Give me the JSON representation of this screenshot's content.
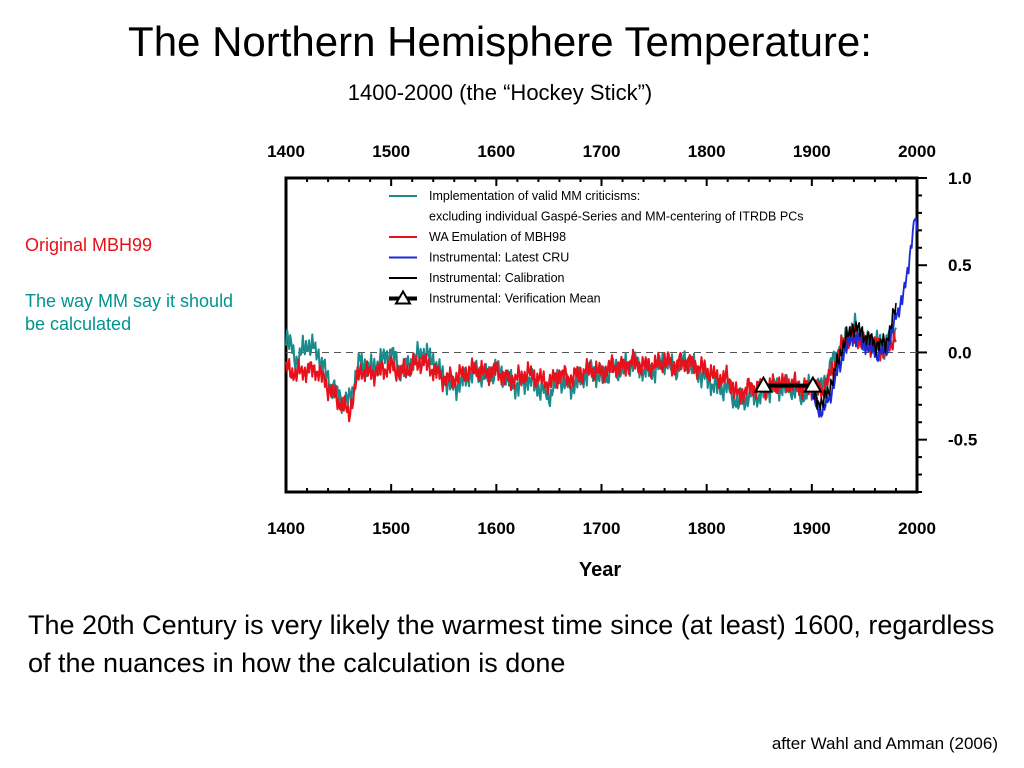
{
  "slide": {
    "title": "The Northern Hemisphere Temperature:",
    "subtitle": "1400-2000 (the “Hockey Stick”)",
    "side_note_red": "Original MBH99",
    "side_note_teal": "The  way MM say it should be calculated",
    "conclusion": "The 20th Century is very likely the warmest time since (at least) 1600, regardless of the nuances in how the calculation is done",
    "credit": "after Wahl and Amman (2006)"
  },
  "chart_data": {
    "type": "line",
    "xlabel": "Year",
    "ylabel": "",
    "xlim": [
      1400,
      2000
    ],
    "ylim": [
      -0.8,
      1.0
    ],
    "x_ticks": [
      1400,
      1500,
      1600,
      1700,
      1800,
      1900,
      2000
    ],
    "y_ticks": [
      1.0,
      0.5,
      0.0,
      -0.5
    ],
    "y_tick_labels": [
      "1.0",
      "0.5",
      "0.0",
      "-0.5"
    ],
    "reference_line": 0.0,
    "legend": {
      "placement": "top-left-inside",
      "entries": [
        {
          "label": "Implementation of valid MM criticisms:",
          "color": "#1a8a8a",
          "marker": "line"
        },
        {
          "label": "excluding individual Gaspé-Series and MM-centering of ITRDB PCs",
          "color": "",
          "marker": "none"
        },
        {
          "label": "WA Emulation of MBH98",
          "color": "#e8101a",
          "marker": "line"
        },
        {
          "label": "Instrumental: Latest CRU",
          "color": "#1a2ad8",
          "marker": "line"
        },
        {
          "label": "Instrumental: Calibration",
          "color": "#000000",
          "marker": "line"
        },
        {
          "label": "Instrumental: Verification Mean",
          "color": "#000000",
          "marker": "triangle-line"
        }
      ]
    },
    "series": [
      {
        "name": "Implementation of valid MM criticisms",
        "color": "#1a8a8a",
        "x": [
          1400,
          1410,
          1420,
          1430,
          1440,
          1450,
          1460,
          1470,
          1480,
          1490,
          1500,
          1510,
          1520,
          1530,
          1540,
          1550,
          1560,
          1570,
          1580,
          1590,
          1600,
          1610,
          1620,
          1630,
          1640,
          1650,
          1660,
          1670,
          1680,
          1690,
          1700,
          1710,
          1720,
          1730,
          1740,
          1750,
          1760,
          1770,
          1780,
          1790,
          1800,
          1810,
          1820,
          1830,
          1840,
          1850,
          1860,
          1870,
          1880,
          1890,
          1900,
          1910,
          1920,
          1930,
          1940,
          1950,
          1960,
          1970,
          1980
        ],
        "y": [
          0.1,
          -0.05,
          0.05,
          0.0,
          -0.15,
          -0.25,
          -0.28,
          -0.05,
          -0.1,
          -0.05,
          0.0,
          -0.1,
          -0.05,
          0.0,
          -0.05,
          -0.15,
          -0.2,
          -0.15,
          -0.1,
          -0.15,
          -0.1,
          -0.15,
          -0.2,
          -0.15,
          -0.2,
          -0.25,
          -0.15,
          -0.2,
          -0.15,
          -0.1,
          -0.15,
          -0.1,
          -0.1,
          -0.05,
          -0.1,
          -0.1,
          -0.05,
          -0.1,
          -0.05,
          -0.1,
          -0.15,
          -0.2,
          -0.2,
          -0.3,
          -0.25,
          -0.25,
          -0.2,
          -0.2,
          -0.2,
          -0.25,
          -0.2,
          -0.2,
          -0.05,
          0.05,
          0.15,
          0.05,
          0.05,
          0.05,
          0.15
        ]
      },
      {
        "name": "WA Emulation of MBH98",
        "color": "#e8101a",
        "x": [
          1400,
          1410,
          1420,
          1430,
          1440,
          1450,
          1460,
          1470,
          1480,
          1490,
          1500,
          1510,
          1520,
          1530,
          1540,
          1550,
          1560,
          1570,
          1580,
          1590,
          1600,
          1610,
          1620,
          1630,
          1640,
          1650,
          1660,
          1670,
          1680,
          1690,
          1700,
          1710,
          1720,
          1730,
          1740,
          1750,
          1760,
          1770,
          1780,
          1790,
          1800,
          1810,
          1820,
          1830,
          1840,
          1850,
          1860,
          1870,
          1880,
          1890,
          1900,
          1910,
          1920,
          1930,
          1940,
          1950,
          1960,
          1970,
          1980
        ],
        "y": [
          -0.1,
          -0.12,
          -0.1,
          -0.1,
          -0.2,
          -0.28,
          -0.35,
          -0.1,
          -0.12,
          -0.1,
          -0.08,
          -0.12,
          -0.08,
          -0.05,
          -0.1,
          -0.15,
          -0.15,
          -0.12,
          -0.1,
          -0.12,
          -0.1,
          -0.15,
          -0.15,
          -0.12,
          -0.15,
          -0.18,
          -0.12,
          -0.15,
          -0.12,
          -0.1,
          -0.12,
          -0.08,
          -0.08,
          -0.05,
          -0.08,
          -0.08,
          -0.05,
          -0.08,
          -0.05,
          -0.08,
          -0.1,
          -0.15,
          -0.15,
          -0.25,
          -0.2,
          -0.2,
          -0.2,
          -0.18,
          -0.18,
          -0.2,
          -0.2,
          -0.22,
          -0.1,
          0.05,
          0.1,
          0.05,
          0.05,
          0.0,
          0.1
        ]
      },
      {
        "name": "Instrumental: Latest CRU",
        "color": "#1a2ad8",
        "x": [
          1900,
          1910,
          1920,
          1930,
          1940,
          1950,
          1960,
          1970,
          1980,
          1990,
          1998,
          2000
        ],
        "y": [
          -0.25,
          -0.35,
          -0.2,
          0.0,
          0.1,
          0.05,
          0.0,
          0.0,
          0.2,
          0.4,
          0.8,
          0.65
        ]
      },
      {
        "name": "Instrumental: Calibration",
        "color": "#000000",
        "x": [
          1902,
          1910,
          1920,
          1930,
          1940,
          1950,
          1960,
          1970,
          1980
        ],
        "y": [
          -0.25,
          -0.3,
          -0.15,
          0.05,
          0.15,
          0.1,
          0.05,
          0.05,
          0.25
        ]
      }
    ],
    "verification_mean": {
      "name": "Instrumental: Verification Mean",
      "x": [
        1854,
        1901
      ],
      "y": [
        -0.19,
        -0.19
      ]
    }
  }
}
